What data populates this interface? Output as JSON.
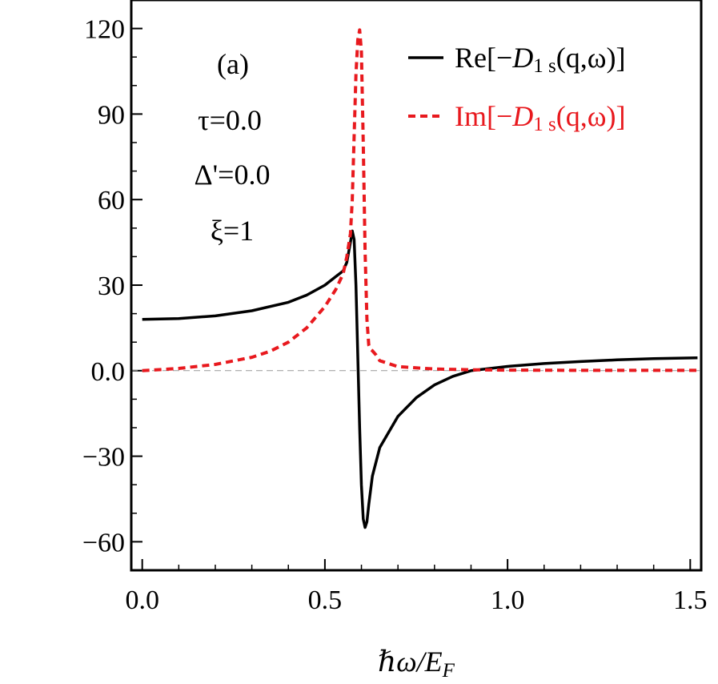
{
  "chart_data": {
    "type": "line",
    "title": "",
    "xlabel": "ℏω/E_F",
    "xlabel_parts": {
      "main": "ℏω/E",
      "sub": "F"
    },
    "ylabel": "",
    "xlim": [
      -0.03,
      1.53
    ],
    "ylim": [
      -70,
      130
    ],
    "xticks": [
      0.0,
      0.5,
      1.0,
      1.5
    ],
    "xtick_labels": [
      "0.0",
      "0.5",
      "1.0",
      "1.5"
    ],
    "yticks": [
      -60,
      -30,
      0,
      30,
      60,
      90,
      120
    ],
    "ytick_labels": [
      "−60",
      "−30",
      "0.0",
      "30",
      "60",
      "90",
      "120"
    ],
    "zero_line": true,
    "annotations": [
      "(a)",
      "τ=0.0",
      "Δ'=0.0",
      "ξ=1"
    ],
    "legend_position": "top-right",
    "series": [
      {
        "name": "Re[−D1s(q,ω)]",
        "legend": {
          "prefix": "Re[−",
          "D": "D",
          "sub": "1 s",
          "suffix": "(q,ω)]"
        },
        "color": "#000000",
        "style": "solid",
        "x": [
          0.0,
          0.1,
          0.2,
          0.3,
          0.4,
          0.45,
          0.5,
          0.53,
          0.55,
          0.56,
          0.57,
          0.575,
          0.58,
          0.585,
          0.59,
          0.595,
          0.6,
          0.605,
          0.61,
          0.615,
          0.62,
          0.63,
          0.65,
          0.7,
          0.75,
          0.8,
          0.85,
          0.9,
          1.0,
          1.1,
          1.2,
          1.3,
          1.4,
          1.52
        ],
        "values": [
          18,
          18.3,
          19.2,
          21,
          24,
          26.5,
          30,
          33,
          35,
          38,
          45,
          49,
          46,
          30,
          5,
          -20,
          -40,
          -52,
          -55,
          -53,
          -47,
          -37,
          -27,
          -16,
          -9.5,
          -5,
          -2,
          0,
          1.5,
          2.5,
          3.2,
          3.8,
          4.2,
          4.5
        ]
      },
      {
        "name": "Im[−D1s(q,ω)]",
        "legend": {
          "prefix": "Im[−",
          "D": "D",
          "sub": "1 s",
          "suffix": "(q,ω)]"
        },
        "color": "#e8191e",
        "style": "dashed",
        "x": [
          0.0,
          0.1,
          0.2,
          0.3,
          0.35,
          0.4,
          0.45,
          0.5,
          0.53,
          0.55,
          0.56,
          0.57,
          0.575,
          0.58,
          0.585,
          0.59,
          0.595,
          0.6,
          0.605,
          0.61,
          0.615,
          0.62,
          0.625,
          0.63,
          0.64,
          0.65,
          0.7,
          0.8,
          0.9,
          1.0,
          1.2,
          1.52
        ],
        "values": [
          0,
          0.8,
          2.2,
          4.7,
          6.8,
          10,
          15,
          22.5,
          28.5,
          34,
          40,
          48,
          60,
          82,
          104,
          116,
          119.5,
          112,
          80,
          42,
          18,
          9,
          7.5,
          7,
          5.5,
          3.5,
          1.4,
          0.6,
          0.3,
          0.2,
          0.1,
          0.1
        ]
      }
    ]
  }
}
